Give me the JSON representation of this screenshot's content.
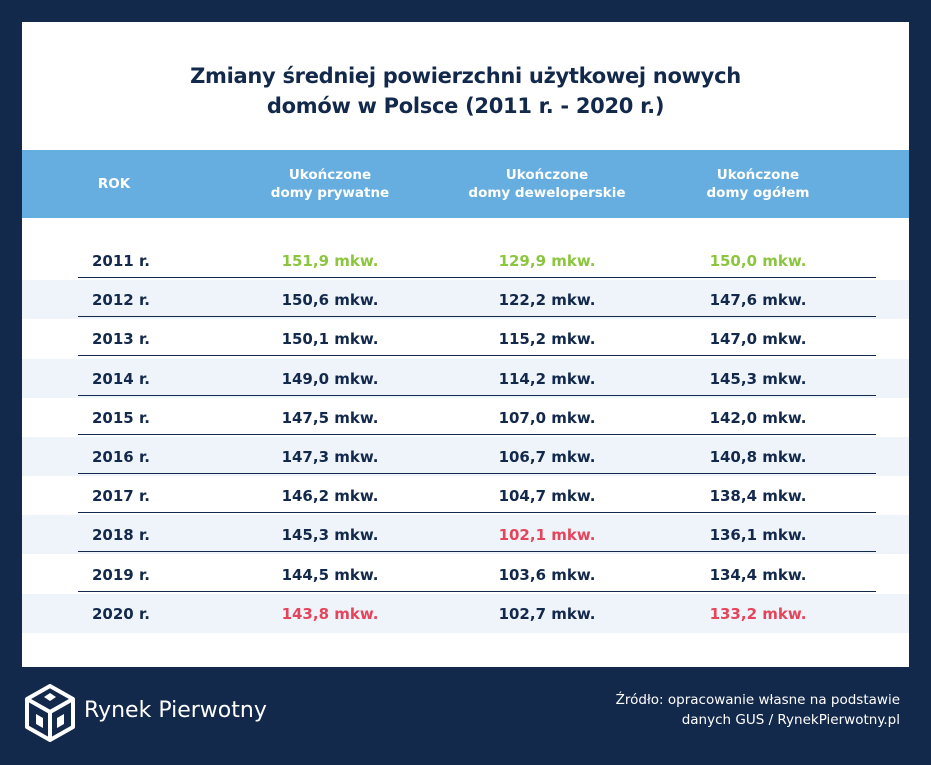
{
  "title": [
    "Zmiany średniej powierzchni użytkowej nowych",
    "domów w Polsce (2011 r. - 2020 r.)"
  ],
  "table": {
    "header": [
      "ROK",
      [
        "Ukończone",
        "domy prywatne"
      ],
      [
        "Ukończone",
        "domy deweloperskie"
      ],
      [
        "Ukończone",
        "domy ogółem"
      ]
    ],
    "rows": [
      [
        "2011 r.",
        "151,9 mkw.",
        "129,9 mkw.",
        "150,0 mkw."
      ],
      [
        "2012 r.",
        "150,6 mkw.",
        "122,2 mkw.",
        "147,6 mkw."
      ],
      [
        "2013 r.",
        "150,1 mkw.",
        "115,2 mkw.",
        "147,0 mkw."
      ],
      [
        "2014 r.",
        "149,0 mkw.",
        "114,2 mkw.",
        "145,3 mkw."
      ],
      [
        "2015 r.",
        "147,5 mkw.",
        "107,0 mkw.",
        "142,0 mkw."
      ],
      [
        "2016 r.",
        "147,3 mkw.",
        "106,7 mkw.",
        "140,8 mkw."
      ],
      [
        "2017 r.",
        "146,2 mkw.",
        "104,7 mkw.",
        "138,4 mkw."
      ],
      [
        "2018 r.",
        "145,3 mkw.",
        "102,1 mkw.",
        "136,1 mkw."
      ],
      [
        "2019 r.",
        "144,5 mkw.",
        "103,6 mkw.",
        "134,4 mkw."
      ],
      [
        "2020 r.",
        "143,8 mkw.",
        "102,7 mkw.",
        "133,2 mkw."
      ]
    ]
  },
  "footer": {
    "brand": "Rynek Pierwotny",
    "source": [
      "Źródło: opracowanie własne na podstawie",
      "danych GUS / RynekPierwotny.pl"
    ]
  }
}
